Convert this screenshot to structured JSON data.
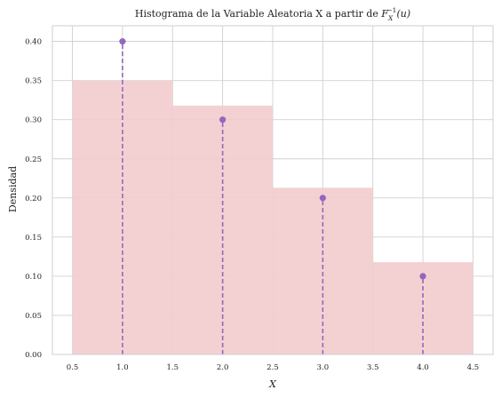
{
  "chart_data": {
    "type": "bar",
    "title": "Histograma de la Variable Aleatoria X a partir de F_X^{-1}(u)",
    "title_parts": {
      "prefix": "Histograma de la Variable Aleatoria X a partir de ",
      "f": "F",
      "sub": "X",
      "sup": "−1",
      "arg": "(u)"
    },
    "xlabel": "X",
    "ylabel": "Densidad",
    "xlim": [
      0.3,
      4.7
    ],
    "ylim": [
      0.0,
      0.42
    ],
    "xticks": [
      0.5,
      1.0,
      1.5,
      2.0,
      2.5,
      3.0,
      3.5,
      4.0,
      4.5
    ],
    "xtick_labels": [
      "0.5",
      "1.0",
      "1.5",
      "2.0",
      "2.5",
      "3.0",
      "3.5",
      "4.0",
      "4.5"
    ],
    "yticks": [
      0.0,
      0.05,
      0.1,
      0.15,
      0.2,
      0.25,
      0.3,
      0.35,
      0.4
    ],
    "ytick_labels": [
      "0.00",
      "0.05",
      "0.10",
      "0.15",
      "0.20",
      "0.25",
      "0.30",
      "0.35",
      "0.40"
    ],
    "grid": true,
    "histogram": {
      "bins": [
        {
          "x0": 0.5,
          "x1": 1.5,
          "density": 0.35
        },
        {
          "x0": 1.5,
          "x1": 2.5,
          "density": 0.318
        },
        {
          "x0": 2.5,
          "x1": 3.5,
          "density": 0.213
        },
        {
          "x0": 3.5,
          "x1": 4.5,
          "density": 0.118
        }
      ],
      "color": "#f2cdcf"
    },
    "stems": {
      "x": [
        1,
        2,
        3,
        4
      ],
      "y": [
        0.4,
        0.3,
        0.2,
        0.1
      ],
      "color": "#9467bd",
      "line_style": "dashed"
    }
  }
}
